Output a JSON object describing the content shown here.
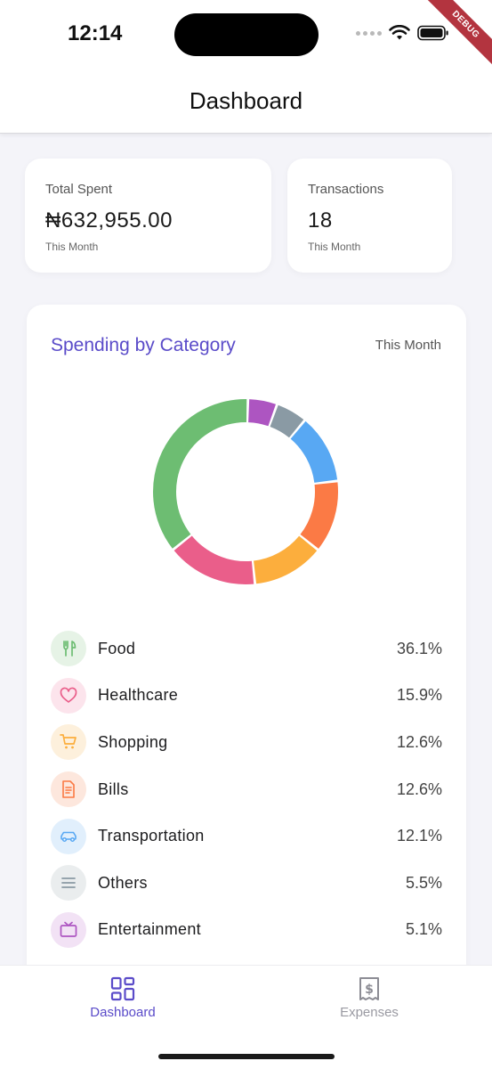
{
  "status_bar": {
    "time": "12:14",
    "debug_label": "DEBUG"
  },
  "app_bar": {
    "title": "Dashboard"
  },
  "summary": {
    "total_spent": {
      "label": "Total Spent",
      "value": "₦632,955.00",
      "period": "This Month"
    },
    "transactions": {
      "label": "Transactions",
      "value": "18",
      "period": "This Month"
    }
  },
  "category": {
    "title": "Spending by Category",
    "period": "This Month",
    "items": [
      {
        "name": "Food",
        "percent": "36.1%",
        "value": 36.1,
        "color": "#6dbd72",
        "bg": "#e6f3e6",
        "icon": "fork-knife-icon"
      },
      {
        "name": "Healthcare",
        "percent": "15.9%",
        "value": 15.9,
        "color": "#ea5e8a",
        "bg": "#fce4ec",
        "icon": "heart-icon"
      },
      {
        "name": "Shopping",
        "percent": "12.6%",
        "value": 12.6,
        "color": "#fcae3d",
        "bg": "#fdf0dc",
        "icon": "cart-icon"
      },
      {
        "name": "Bills",
        "percent": "12.6%",
        "value": 12.6,
        "color": "#fb7a45",
        "bg": "#fde7dd",
        "icon": "receipt-icon"
      },
      {
        "name": "Transportation",
        "percent": "12.1%",
        "value": 12.1,
        "color": "#58a8f3",
        "bg": "#e1effc",
        "icon": "car-icon"
      },
      {
        "name": "Others",
        "percent": "5.5%",
        "value": 5.5,
        "color": "#8a9aa4",
        "bg": "#eaedee",
        "icon": "list-icon"
      },
      {
        "name": "Entertainment",
        "percent": "5.1%",
        "value": 5.1,
        "color": "#ad55c1",
        "bg": "#f2e2f5",
        "icon": "tv-icon"
      }
    ]
  },
  "bottom_nav": {
    "items": [
      {
        "label": "Dashboard",
        "active": true,
        "icon": "dashboard-grid-icon"
      },
      {
        "label": "Expenses",
        "active": false,
        "icon": "dollar-receipt-icon"
      }
    ],
    "active_color": "#5a4bc9",
    "inactive_color": "#9a9aa2"
  }
}
